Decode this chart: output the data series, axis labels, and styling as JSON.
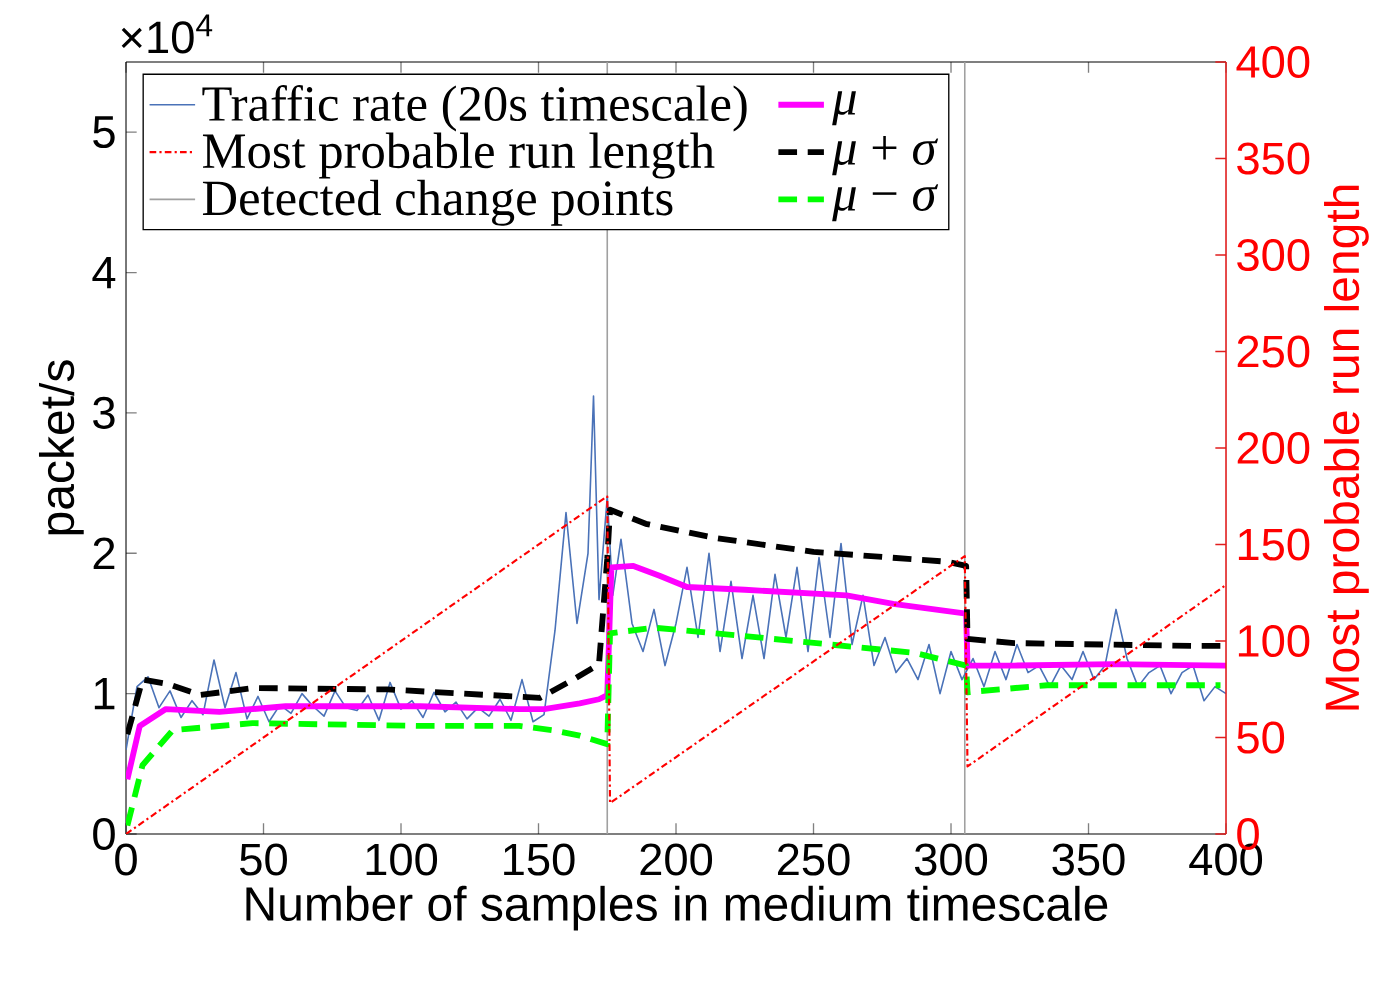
{
  "chart_data": {
    "type": "line",
    "xlabel": "Number of samples in medium timescale",
    "ylabel": "packet/s",
    "y2label": "Most probable run length",
    "annotations": [
      "×10$^{4}$"
    ],
    "xlim": [
      0,
      400
    ],
    "xticks": [
      0,
      50,
      100,
      150,
      200,
      250,
      300,
      350,
      400
    ],
    "ylim": [
      0,
      5.5
    ],
    "yticks": [
      0,
      1,
      2,
      3,
      4,
      5
    ],
    "y2lim": [
      0,
      400
    ],
    "y2ticks": [
      0,
      50,
      100,
      150,
      200,
      250,
      300,
      350,
      400
    ],
    "legend": "top left",
    "grid": false,
    "ref_lines": [
      {
        "axis": "x",
        "value": 175,
        "label": "Detected change points",
        "color": "#a0a0a0"
      },
      {
        "axis": "x",
        "value": 305,
        "color": "#a0a0a0"
      }
    ],
    "series": [
      {
        "name": "Traffic rate (20s timescale)",
        "color": "#4a72b8",
        "line_style": "solid",
        "x": [
          0,
          4,
          8,
          12,
          16,
          20,
          24,
          28,
          32,
          36,
          40,
          44,
          48,
          52,
          56,
          60,
          64,
          68,
          72,
          76,
          80,
          84,
          88,
          92,
          96,
          100,
          104,
          108,
          112,
          116,
          120,
          124,
          128,
          132,
          136,
          140,
          144,
          148,
          152,
          156,
          160,
          164,
          168,
          170,
          172,
          175,
          177,
          180,
          184,
          188,
          192,
          196,
          200,
          204,
          208,
          212,
          216,
          220,
          224,
          228,
          232,
          236,
          240,
          244,
          248,
          252,
          256,
          260,
          264,
          268,
          272,
          276,
          280,
          284,
          288,
          292,
          296,
          300,
          304,
          308,
          312,
          316,
          320,
          324,
          328,
          332,
          336,
          340,
          344,
          348,
          352,
          356,
          360,
          364,
          368,
          372,
          376,
          380,
          384,
          388,
          392,
          396,
          400
        ],
        "values": [
          0.6,
          1.05,
          1.12,
          0.9,
          1.02,
          0.83,
          0.95,
          0.85,
          1.24,
          0.9,
          1.15,
          0.82,
          0.98,
          0.8,
          0.92,
          0.86,
          1.0,
          0.91,
          0.84,
          1.02,
          0.9,
          0.88,
          0.99,
          0.81,
          1.08,
          0.89,
          0.95,
          0.83,
          1.01,
          0.87,
          0.94,
          0.82,
          0.9,
          0.84,
          0.96,
          0.81,
          1.1,
          0.8,
          0.85,
          1.45,
          2.29,
          1.5,
          2.0,
          3.12,
          1.67,
          2.4,
          1.7,
          2.1,
          1.5,
          1.3,
          1.6,
          1.2,
          1.5,
          1.9,
          1.4,
          2.0,
          1.3,
          1.8,
          1.25,
          1.7,
          1.25,
          1.85,
          1.4,
          1.9,
          1.3,
          1.97,
          1.4,
          2.07,
          1.35,
          1.7,
          1.2,
          1.4,
          1.15,
          1.25,
          1.1,
          1.35,
          1.0,
          1.3,
          1.1,
          1.25,
          1.05,
          1.3,
          1.1,
          1.35,
          1.15,
          1.2,
          1.05,
          1.2,
          1.1,
          1.3,
          1.1,
          1.2,
          1.6,
          1.25,
          1.05,
          1.15,
          1.2,
          1.0,
          1.15,
          1.2,
          0.95,
          1.05,
          1.0
        ]
      },
      {
        "name": "Most probable run length",
        "color": "#ff0000",
        "line_style": "dotted",
        "axis": "y2",
        "x": [
          0,
          175,
          176,
          305,
          306,
          400
        ],
        "values": [
          0,
          175,
          16,
          144,
          35,
          129
        ]
      },
      {
        "name": "*μ*",
        "color": "#ff00ff",
        "line_style": "solid",
        "x": [
          0.5,
          5,
          14.5,
          34,
          58,
          107,
          143,
          152,
          165,
          172,
          175,
          176.5,
          184.5,
          194,
          204,
          225,
          262,
          279,
          305.5,
          306,
          323,
          359,
          400
        ],
        "values": [
          0.39,
          0.77,
          0.89,
          0.87,
          0.91,
          0.91,
          0.89,
          0.89,
          0.93,
          0.96,
          0.99,
          1.9,
          1.91,
          1.84,
          1.76,
          1.74,
          1.7,
          1.64,
          1.57,
          1.2,
          1.2,
          1.21,
          1.2
        ]
      },
      {
        "name": "*μ* + *σ*",
        "color": "#000000",
        "line_style": "dashed",
        "x": [
          0.5,
          6,
          15,
          27,
          46,
          95,
          150.5,
          162.6,
          172,
          175,
          176,
          189,
          214,
          250,
          298.5,
          305.5,
          306,
          323,
          388.6,
          400
        ],
        "values": [
          0.71,
          1.1,
          1.07,
          0.99,
          1.04,
          1.03,
          0.97,
          1.1,
          1.21,
          1.96,
          2.31,
          2.21,
          2.11,
          2.01,
          1.94,
          1.91,
          1.39,
          1.36,
          1.34,
          1.34
        ]
      },
      {
        "name": "*μ* − *σ*",
        "color": "#00ff00",
        "line_style": "dashed",
        "x": [
          0.5,
          6,
          17,
          46,
          107,
          143,
          155,
          165,
          175,
          176,
          192,
          225,
          287,
          305.5,
          306,
          335,
          398
        ],
        "values": [
          0.06,
          0.49,
          0.74,
          0.79,
          0.77,
          0.77,
          0.74,
          0.7,
          0.64,
          1.43,
          1.47,
          1.41,
          1.29,
          1.2,
          1.01,
          1.06,
          1.06
        ]
      }
    ]
  }
}
